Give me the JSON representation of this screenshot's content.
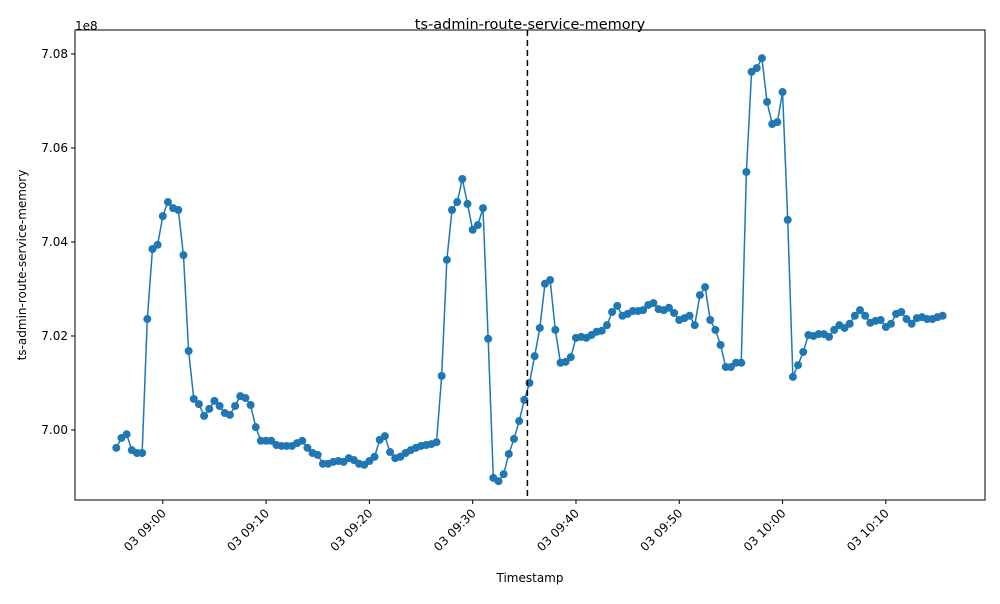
{
  "chart_data": {
    "type": "line",
    "title": "ts-admin-route-service-memory",
    "xlabel": "Timestamp",
    "ylabel": "ts-admin-route-service-memory",
    "y_offset_label": "1e8",
    "color": "#1f77b4",
    "x": [
      535.5,
      536,
      536.5,
      537,
      537.5,
      538,
      538.5,
      539,
      539.5,
      540,
      540.5,
      541,
      541.5,
      542,
      542.5,
      543,
      543.5,
      544,
      544.5,
      545,
      545.5,
      546,
      546.5,
      547,
      547.5,
      548,
      548.5,
      549,
      549.5,
      550,
      550.5,
      551,
      551.5,
      552,
      552.5,
      553,
      553.5,
      554,
      554.5,
      555,
      555.5,
      556,
      556.5,
      557,
      557.5,
      558,
      558.5,
      559,
      559.5,
      560,
      560.5,
      561,
      561.5,
      562,
      562.5,
      563,
      563.5,
      564,
      564.5,
      565,
      565.5,
      566,
      566.5,
      567,
      567.5,
      568,
      568.5,
      569,
      569.5,
      570,
      570.5,
      571,
      571.5,
      572,
      572.5,
      573,
      573.5,
      574,
      574.5,
      575,
      575.5,
      576,
      576.5,
      577,
      577.5,
      578,
      578.5,
      579,
      579.5,
      580,
      580.5,
      581,
      581.5,
      582,
      582.5,
      583,
      583.5,
      584,
      584.5,
      585,
      585.5,
      586,
      586.5,
      587,
      587.5,
      588,
      588.5,
      589,
      589.5,
      590,
      590.5,
      591,
      591.5,
      592,
      592.5,
      593,
      593.5,
      594,
      594.5,
      595,
      595.5,
      596,
      596.5,
      597,
      597.5,
      598,
      598.5,
      599,
      599.5,
      600,
      600.5,
      601,
      601.5,
      602,
      602.5,
      603,
      603.5,
      604,
      604.5,
      605,
      605.5,
      606,
      606.5,
      607,
      607.5,
      608,
      608.5,
      609,
      609.5,
      610,
      610.5,
      611,
      611.5,
      612,
      612.5,
      613,
      613.5,
      614,
      614.5,
      615,
      615.5
    ],
    "values": [
      6.9962,
      6.9983,
      6.9991,
      6.9957,
      6.9951,
      6.9951,
      7.0236,
      7.0385,
      7.0394,
      7.0455,
      7.0485,
      7.0472,
      7.0468,
      7.0372,
      7.0168,
      7.0066,
      7.0055,
      7.003,
      7.0045,
      7.0062,
      7.0051,
      7.0036,
      7.0032,
      7.0051,
      7.0072,
      7.0068,
      7.0053,
      7.0006,
      6.9977,
      6.9977,
      6.9977,
      6.9968,
      6.9966,
      6.9966,
      6.9966,
      6.9972,
      6.9977,
      6.9962,
      6.9951,
      6.9947,
      6.9928,
      6.9928,
      6.9932,
      6.9934,
      6.9932,
      6.994,
      6.9936,
      6.9928,
      6.9926,
      6.9934,
      6.9943,
      6.9979,
      6.9987,
      6.9953,
      6.994,
      6.9943,
      6.9951,
      6.9957,
      6.9962,
      6.9966,
      6.9968,
      6.997,
      6.9974,
      7.0115,
      7.0362,
      7.0468,
      7.0485,
      7.0534,
      7.0481,
      7.0426,
      7.0436,
      7.0472,
      7.0194,
      6.9898,
      6.9891,
      6.9906,
      6.9949,
      6.9981,
      7.0019,
      7.0064,
      7.01,
      7.0157,
      7.0217,
      7.0311,
      7.0319,
      7.0213,
      7.0143,
      7.0145,
      7.0155,
      7.0196,
      7.0198,
      7.0196,
      7.0202,
      7.0209,
      7.0211,
      7.0223,
      7.0251,
      7.0264,
      7.0243,
      7.0247,
      7.0253,
      7.0253,
      7.0255,
      7.0266,
      7.027,
      7.0257,
      7.0255,
      7.026,
      7.0249,
      7.0234,
      7.0238,
      7.0243,
      7.0223,
      7.0287,
      7.0304,
      7.0234,
      7.0213,
      7.0181,
      7.0134,
      7.0134,
      7.0143,
      7.0143,
      7.0549,
      7.0762,
      7.077,
      7.0791,
      7.0698,
      7.0651,
      7.0655,
      7.0719,
      7.0447,
      7.0113,
      7.0138,
      7.0166,
      7.0202,
      7.02,
      7.0204,
      7.0204,
      7.0198,
      7.0213,
      7.0223,
      7.0217,
      7.0226,
      7.0243,
      7.0255,
      7.0243,
      7.0228,
      7.0232,
      7.0234,
      7.0219,
      7.0226,
      7.0247,
      7.0251,
      7.0236,
      7.0226,
      7.0238,
      7.024,
      7.0236,
      7.0236,
      7.024,
      7.0243
    ],
    "xlim": [
      531.5,
      619.6
    ],
    "xticks": [
      {
        "value": 540,
        "label": "03 09:00"
      },
      {
        "value": 550,
        "label": "03 09:10"
      },
      {
        "value": 560,
        "label": "03 09:20"
      },
      {
        "value": 570,
        "label": "03 09:30"
      },
      {
        "value": 580,
        "label": "03 09:40"
      },
      {
        "value": 590,
        "label": "03 09:50"
      },
      {
        "value": 600,
        "label": "03 10:00"
      },
      {
        "value": 610,
        "label": "03 10:10"
      }
    ],
    "ylim": [
      6.9851,
      7.0851
    ],
    "yticks": [
      {
        "value": 7.0,
        "label": "7.00"
      },
      {
        "value": 7.02,
        "label": "7.02"
      },
      {
        "value": 7.04,
        "label": "7.04"
      },
      {
        "value": 7.06,
        "label": "7.06"
      },
      {
        "value": 7.08,
        "label": "7.08"
      }
    ],
    "vline_x": 575.3,
    "vline_color": "#000000",
    "grid": false
  }
}
